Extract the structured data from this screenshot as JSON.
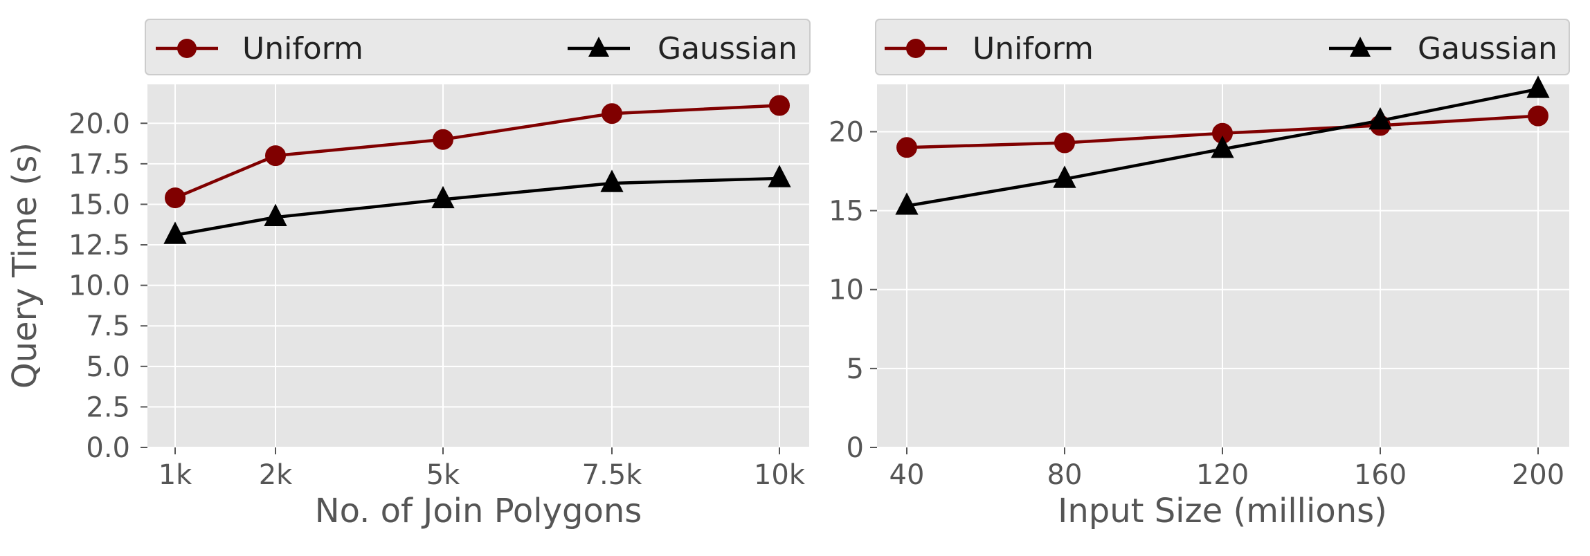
{
  "chart_data": [
    {
      "type": "line",
      "categories": [
        "1k",
        "2k",
        "5k",
        "7.5k",
        "10k"
      ],
      "series": [
        {
          "name": "Uniform",
          "values": [
            15.4,
            18.0,
            19.0,
            20.6,
            21.1
          ],
          "color": "#800000",
          "marker": "circle"
        },
        {
          "name": "Gaussian",
          "values": [
            13.1,
            14.2,
            15.3,
            16.3,
            16.6
          ],
          "color": "#000000",
          "marker": "triangle"
        }
      ],
      "xlabel": "No. of Join Polygons",
      "ylabel": "Query Time (s)",
      "ylim": [
        0,
        22.4
      ],
      "yticks": [
        "0.0",
        "2.5",
        "5.0",
        "7.5",
        "10.0",
        "12.5",
        "15.0",
        "17.5",
        "20.0"
      ],
      "grid": true,
      "legend": "top"
    },
    {
      "type": "line",
      "categories": [
        "40",
        "80",
        "120",
        "160",
        "200"
      ],
      "series": [
        {
          "name": "Uniform",
          "values": [
            19.0,
            19.3,
            19.9,
            20.4,
            21.0
          ],
          "color": "#800000",
          "marker": "circle"
        },
        {
          "name": "Gaussian",
          "values": [
            15.3,
            17.0,
            18.9,
            20.7,
            22.7
          ],
          "color": "#000000",
          "marker": "triangle"
        }
      ],
      "xlabel": "Input Size (millions)",
      "ylabel": "",
      "ylim": [
        0,
        23.0
      ],
      "yticks": [
        "0",
        "5",
        "10",
        "15",
        "20"
      ],
      "grid": true,
      "legend": "top"
    }
  ]
}
